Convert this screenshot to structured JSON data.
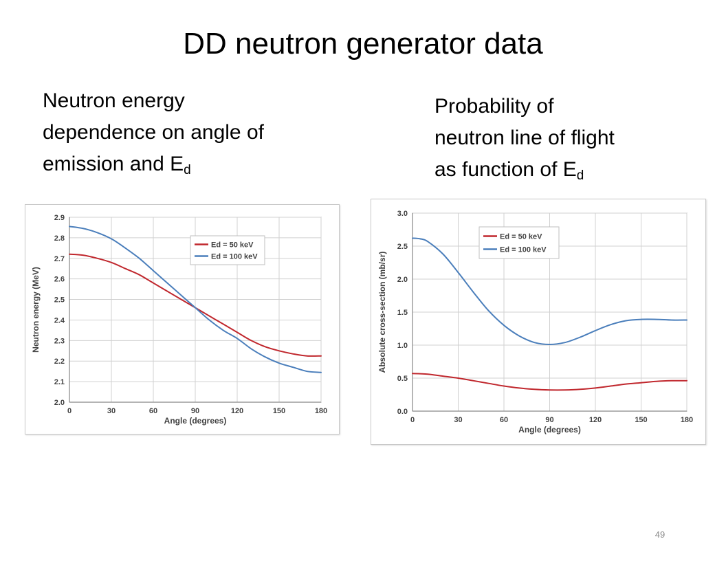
{
  "slide": {
    "title": "DD neutron generator data",
    "caption_left": {
      "lines": [
        "Neutron energy",
        "dependence on angle of",
        "emission and E"
      ],
      "subscript": "d"
    },
    "caption_right": {
      "lines": [
        "Probability of",
        "neutron line of flight",
        "as function of E"
      ],
      "subscript": "d"
    },
    "page_number": "49"
  },
  "chart_data": [
    {
      "type": "line",
      "xlabel": "Angle (degrees)",
      "ylabel": "Neutron energy (MeV)",
      "xlim": [
        0,
        180
      ],
      "ylim": [
        2.0,
        2.9
      ],
      "xticks": [
        0,
        30,
        60,
        90,
        120,
        150,
        180
      ],
      "yticks": [
        2.0,
        2.1,
        2.2,
        2.3,
        2.4,
        2.5,
        2.6,
        2.7,
        2.8,
        2.9
      ],
      "ytick_labels": [
        "2.0",
        "2.1",
        "2.2",
        "2.3",
        "2.4",
        "2.5",
        "2.6",
        "2.7",
        "2.8",
        "2.9"
      ],
      "grid": true,
      "legend_position": "top-right",
      "series": [
        {
          "name": "Ed =  50 keV",
          "color": "#c0272d",
          "x": [
            0,
            10,
            20,
            30,
            40,
            50,
            60,
            70,
            80,
            90,
            100,
            110,
            120,
            130,
            140,
            150,
            160,
            170,
            180
          ],
          "y": [
            2.72,
            2.715,
            2.7,
            2.68,
            2.65,
            2.62,
            2.58,
            2.54,
            2.5,
            2.46,
            2.42,
            2.38,
            2.34,
            2.3,
            2.27,
            2.25,
            2.235,
            2.225,
            2.225
          ]
        },
        {
          "name": "Ed = 100 keV",
          "color": "#4a7ebb",
          "x": [
            0,
            10,
            20,
            30,
            40,
            50,
            60,
            70,
            80,
            90,
            100,
            110,
            120,
            130,
            140,
            150,
            160,
            170,
            180
          ],
          "y": [
            2.855,
            2.845,
            2.825,
            2.795,
            2.75,
            2.7,
            2.64,
            2.58,
            2.52,
            2.46,
            2.4,
            2.35,
            2.31,
            2.26,
            2.22,
            2.19,
            2.17,
            2.15,
            2.145
          ]
        }
      ]
    },
    {
      "type": "line",
      "xlabel": "Angle (degrees)",
      "ylabel": "Absolute cross-section (mb/sr)",
      "xlim": [
        0,
        180
      ],
      "ylim": [
        0,
        3.0
      ],
      "xticks": [
        0,
        30,
        60,
        90,
        120,
        150,
        180
      ],
      "yticks": [
        0,
        0.5,
        1.0,
        1.5,
        2.0,
        2.5,
        3.0
      ],
      "ytick_labels": [
        "0.0",
        "0.5",
        "1.0",
        "1.5",
        "2.0",
        "2.5",
        "3.0"
      ],
      "grid": true,
      "legend_position": "top-left",
      "series": [
        {
          "name": "Ed =  50 keV",
          "color": "#c0272d",
          "x": [
            0,
            10,
            20,
            30,
            40,
            50,
            60,
            70,
            80,
            90,
            100,
            110,
            120,
            130,
            140,
            150,
            160,
            170,
            180
          ],
          "y": [
            0.57,
            0.56,
            0.53,
            0.5,
            0.46,
            0.42,
            0.38,
            0.35,
            0.33,
            0.32,
            0.32,
            0.33,
            0.35,
            0.38,
            0.41,
            0.43,
            0.45,
            0.46,
            0.46
          ]
        },
        {
          "name": "Ed = 100 keV",
          "color": "#4a7ebb",
          "x": [
            0,
            5,
            10,
            20,
            30,
            40,
            50,
            60,
            70,
            80,
            90,
            100,
            110,
            120,
            130,
            140,
            150,
            160,
            170,
            180
          ],
          "y": [
            2.62,
            2.61,
            2.57,
            2.38,
            2.1,
            1.8,
            1.52,
            1.3,
            1.14,
            1.04,
            1.01,
            1.04,
            1.12,
            1.22,
            1.31,
            1.37,
            1.39,
            1.39,
            1.38,
            1.38
          ]
        }
      ]
    }
  ]
}
